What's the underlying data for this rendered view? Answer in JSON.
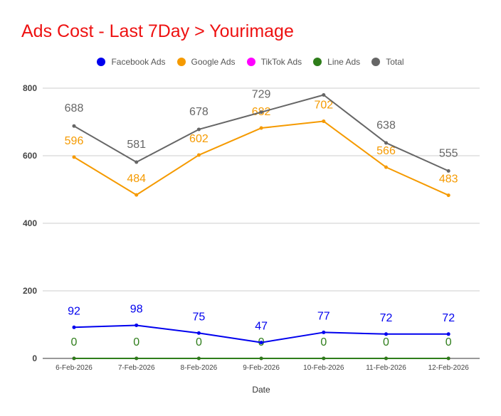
{
  "chart_data": {
    "type": "line",
    "title": "Ads Cost - Last 7Day > Yourimage",
    "xlabel": "Date",
    "ylabel": "",
    "ylim": [
      0,
      800
    ],
    "yticks": [
      0,
      200,
      400,
      600,
      800
    ],
    "grid": true,
    "legend_position": "top-center",
    "categories": [
      "6-Feb-2026",
      "7-Feb-2026",
      "8-Feb-2026",
      "9-Feb-2026",
      "10-Feb-2026",
      "11-Feb-2026",
      "12-Feb-2026"
    ],
    "series": [
      {
        "name": "Facebook Ads",
        "color": "#0000ee",
        "values": [
          92,
          98,
          75,
          47,
          77,
          72,
          72
        ],
        "label_offset": -18
      },
      {
        "name": "Google Ads",
        "color": "#f59a00",
        "values": [
          596,
          484,
          602,
          682,
          702,
          566,
          483
        ],
        "label_offset": -18
      },
      {
        "name": "TikTok Ads",
        "color": "#ff00ff",
        "values": [
          0,
          0,
          0,
          0,
          0,
          0,
          0
        ],
        "label_offset": null
      },
      {
        "name": "Line Ads",
        "color": "#2e7d1a",
        "values": [
          0,
          0,
          0,
          0,
          0,
          0,
          0
        ],
        "label_offset": -18
      },
      {
        "name": "Total",
        "color": "#666666",
        "values": [
          688,
          581,
          678,
          729,
          780,
          638,
          555
        ],
        "label_offset": -20,
        "labels": [
          "688",
          "581",
          "678",
          "729",
          "",
          "638",
          "555"
        ]
      }
    ]
  }
}
